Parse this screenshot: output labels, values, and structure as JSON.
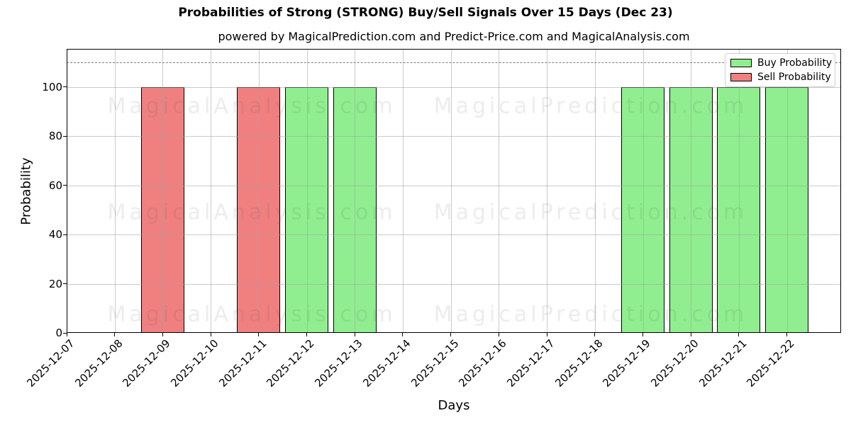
{
  "header": {
    "title": "Probabilities of Strong (STRONG) Buy/Sell Signals Over 15 Days (Dec 23)",
    "subtitle": "powered by MagicalPrediction.com and Predict-Price.com and MagicalAnalysis.com"
  },
  "chart_data": {
    "type": "bar",
    "title": "Probabilities of Strong (STRONG) Buy/Sell Signals Over 15 Days (Dec 23)",
    "subtitle": "powered by MagicalPrediction.com and Predict-Price.com and MagicalAnalysis.com",
    "xlabel": "Days",
    "ylabel": "Probability",
    "ylim": [
      0,
      115.5
    ],
    "yticks": [
      0,
      20,
      40,
      60,
      80,
      100
    ],
    "grid": true,
    "legend_position": "upper right",
    "threshold_line": {
      "y": 110,
      "style": "dashed",
      "color": "#7b7b7b"
    },
    "categories": [
      "2025-12-07",
      "2025-12-08",
      "2025-12-09",
      "2025-12-10",
      "2025-12-11",
      "2025-12-12",
      "2025-12-13",
      "2025-12-14",
      "2025-12-15",
      "2025-12-16",
      "2025-12-17",
      "2025-12-18",
      "2025-12-19",
      "2025-12-20",
      "2025-12-21",
      "2025-12-22"
    ],
    "series": [
      {
        "name": "Buy Probability",
        "color": "#90EE90",
        "values": [
          0,
          0,
          0,
          0,
          0,
          100,
          100,
          0,
          0,
          0,
          0,
          0,
          100,
          100,
          100,
          100
        ]
      },
      {
        "name": "Sell Probability",
        "color": "#F08080",
        "values": [
          0,
          0,
          100,
          0,
          100,
          0,
          0,
          0,
          0,
          0,
          0,
          0,
          0,
          0,
          0,
          0
        ]
      }
    ],
    "watermarks": [
      "MagicalAnalysis.com",
      "MagicalPrediction.com"
    ]
  }
}
